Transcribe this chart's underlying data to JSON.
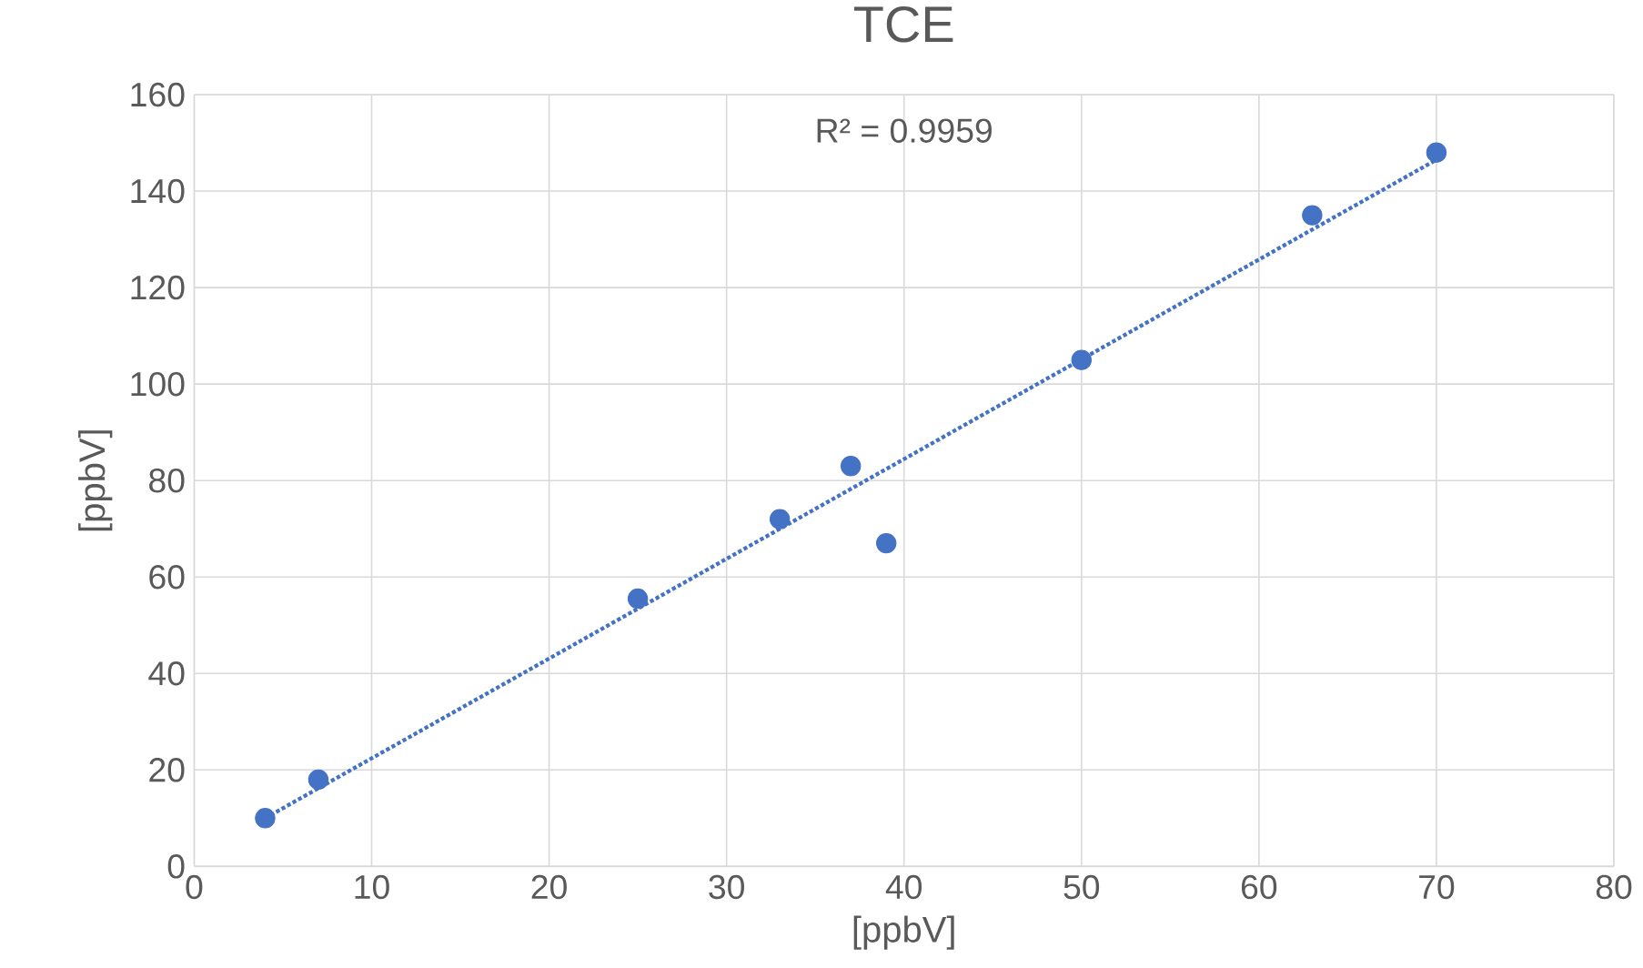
{
  "chart_data": {
    "type": "scatter",
    "title": "TCE",
    "xlabel": "[ppbV]",
    "ylabel": "[ppbV]",
    "annotations": [
      "R² = 0.9959"
    ],
    "xlim": [
      0,
      80
    ],
    "xticks": [
      0,
      10,
      20,
      30,
      40,
      50,
      60,
      70,
      80
    ],
    "ylim": [
      0,
      160
    ],
    "yticks": [
      0,
      20,
      40,
      60,
      80,
      100,
      120,
      140,
      160
    ],
    "grid": true,
    "series": [
      {
        "color": "#4472c4",
        "marker": "circle",
        "x": [
          4,
          7,
          25,
          33,
          37,
          39,
          50,
          63,
          70
        ],
        "values": [
          10,
          18,
          55.5,
          72,
          83,
          67,
          105,
          135,
          148
        ]
      },
      {
        "type": "line",
        "color": "#4472c4",
        "marker": "none",
        "line_style": "dotted",
        "x": [
          4,
          70
        ],
        "values": [
          10,
          146.5
        ]
      }
    ]
  }
}
